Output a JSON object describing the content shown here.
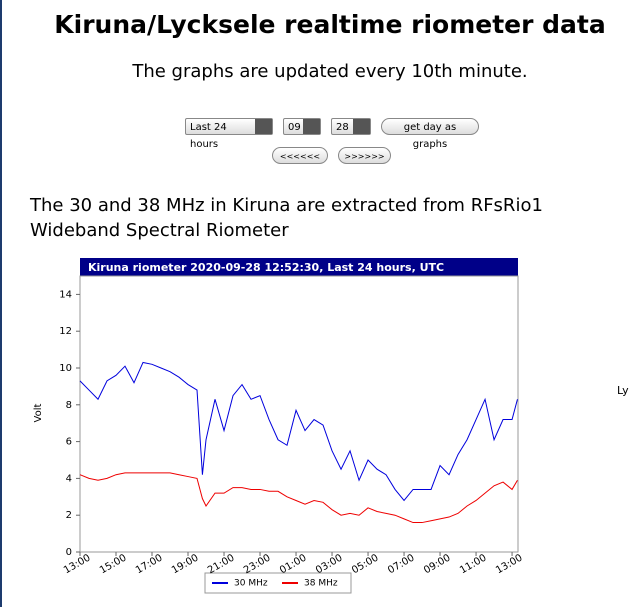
{
  "header": {
    "title": "Kiruna/Lycksele realtime riometer data",
    "subtitle": "The graphs are updated every 10th minute."
  },
  "controls": {
    "range": "Last 24 hours",
    "month": "09",
    "day": "28",
    "button": "get day as graphs",
    "prev": "<<<<<<",
    "next": ">>>>>>"
  },
  "description": "The 30 and 38 MHz in Kiruna are extracted from RFsRio1 Wideband Spectral Riometer",
  "side_text": "Ly",
  "chart_data": {
    "type": "line",
    "title": "Kiruna riometer 2020-09-28 12:52:30, Last 24 hours, UTC",
    "y_label": "Volt",
    "x": [
      0,
      0.5,
      1,
      1.5,
      2,
      2.5,
      3,
      3.5,
      4,
      4.5,
      5,
      5.5,
      6,
      6.5,
      6.8,
      7,
      7.5,
      8,
      8.5,
      9,
      9.5,
      10,
      10.5,
      11,
      11.5,
      12,
      12.5,
      13,
      13.5,
      14,
      14.5,
      15,
      15.5,
      16,
      16.5,
      17,
      17.5,
      18,
      18.5,
      19,
      19.5,
      20,
      20.5,
      21,
      21.5,
      22,
      22.5,
      23,
      23.5,
      24,
      24.3
    ],
    "series": [
      {
        "name": "30 MHz",
        "color": "#0000dd",
        "values": [
          9.3,
          8.8,
          8.3,
          9.3,
          9.6,
          10.1,
          9.2,
          10.3,
          10.2,
          10.0,
          9.8,
          9.5,
          9.1,
          8.8,
          4.2,
          6.1,
          8.3,
          6.6,
          8.5,
          9.1,
          8.3,
          8.5,
          7.2,
          6.1,
          5.8,
          7.7,
          6.6,
          7.2,
          6.9,
          5.5,
          4.5,
          5.5,
          3.9,
          5.0,
          4.5,
          4.2,
          3.4,
          2.8,
          3.4,
          3.4,
          3.4,
          4.7,
          4.2,
          5.3,
          6.1,
          7.2,
          8.3,
          6.1,
          7.2,
          7.2,
          8.3
        ]
      },
      {
        "name": "38 MHz",
        "color": "#ee0000",
        "values": [
          4.2,
          4.0,
          3.9,
          4.0,
          4.2,
          4.3,
          4.3,
          4.3,
          4.3,
          4.3,
          4.3,
          4.2,
          4.1,
          4.0,
          2.9,
          2.5,
          3.2,
          3.2,
          3.5,
          3.5,
          3.4,
          3.4,
          3.3,
          3.3,
          3.0,
          2.8,
          2.6,
          2.8,
          2.7,
          2.3,
          2.0,
          2.1,
          2.0,
          2.4,
          2.2,
          2.1,
          2.0,
          1.8,
          1.6,
          1.6,
          1.7,
          1.8,
          1.9,
          2.1,
          2.5,
          2.8,
          3.2,
          3.6,
          3.8,
          3.4,
          3.9
        ]
      }
    ],
    "xlim": [
      0,
      24.33
    ],
    "xticks": [
      {
        "value": 0,
        "label": "13:00"
      },
      {
        "value": 2,
        "label": "15:00"
      },
      {
        "value": 4,
        "label": "17:00"
      },
      {
        "value": 6,
        "label": "19:00"
      },
      {
        "value": 8,
        "label": "21:00"
      },
      {
        "value": 10,
        "label": "23:00"
      },
      {
        "value": 12,
        "label": "01:00"
      },
      {
        "value": 14,
        "label": "03:00"
      },
      {
        "value": 16,
        "label": "05:00"
      },
      {
        "value": 18,
        "label": "07:00"
      },
      {
        "value": 20,
        "label": "09:00"
      },
      {
        "value": 22,
        "label": "11:00"
      },
      {
        "value": 24,
        "label": "13:00"
      }
    ],
    "ylim": [
      0,
      15
    ],
    "yticks": [
      0,
      2,
      4,
      6,
      8,
      10,
      12,
      14
    ],
    "grid": false
  }
}
